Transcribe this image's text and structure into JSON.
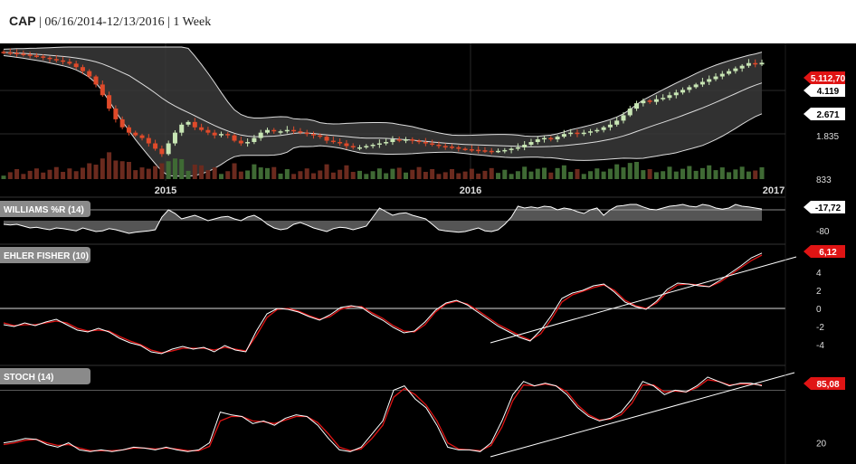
{
  "header": {
    "symbol": "CAP",
    "separator": "|",
    "date_range": "06/16/2014-12/13/2016",
    "interval": "1 Week"
  },
  "colors": {
    "background": "#000000",
    "up_candle": "#c8e6b4",
    "down_candle": "#e04a2a",
    "volume": "#3f6a34",
    "band_fill": "#3a3a3a",
    "signal_line": "#e01414",
    "value_badge": "#e01414",
    "label_tab": "#8a8a8a"
  },
  "chart_data": [
    {
      "type": "candlestick",
      "title": "",
      "x_ticks": [
        "2015",
        "2016",
        "2017"
      ],
      "y_ticks": [
        "4.119",
        "2.671",
        "1.835",
        "833"
      ],
      "price_badges": [
        {
          "value": "5.112,70",
          "color": "red"
        },
        {
          "value": "4.119",
          "color": "white"
        },
        {
          "value": "2.671",
          "color": "white"
        }
      ],
      "close": [
        5500,
        5480,
        5450,
        5420,
        5380,
        5350,
        5300,
        5250,
        5200,
        5150,
        5080,
        4950,
        4800,
        4600,
        4300,
        3900,
        3400,
        3000,
        2700,
        2500,
        2400,
        2300,
        2100,
        1900,
        1700,
        2100,
        2500,
        2800,
        2900,
        2700,
        2600,
        2500,
        2400,
        2450,
        2400,
        2200,
        2100,
        2150,
        2300,
        2500,
        2600,
        2550,
        2550,
        2600,
        2550,
        2500,
        2450,
        2400,
        2350,
        2200,
        2150,
        2100,
        2000,
        1950,
        1950,
        2000,
        2050,
        2100,
        2150,
        2250,
        2200,
        2250,
        2200,
        2150,
        2100,
        2050,
        2000,
        1980,
        1950,
        1900,
        1880,
        1860,
        1840,
        1820,
        1800,
        1820,
        1850,
        1900,
        1950,
        2050,
        2150,
        2250,
        2300,
        2250,
        2350,
        2450,
        2500,
        2450,
        2500,
        2550,
        2600,
        2700,
        2800,
        2950,
        3150,
        3400,
        3600,
        3700,
        3650,
        3750,
        3800,
        3900,
        4000,
        4100,
        4200,
        4300,
        4400,
        4500,
        4600,
        4700,
        4800,
        4900,
        5000,
        5100,
        5050,
        5112.7
      ],
      "bollinger": {
        "period": 20
      },
      "volume": {
        "y_range": [
          0,
          3000
        ]
      },
      "y_range": [
        833,
        5700
      ]
    },
    {
      "type": "line",
      "title": "WILLIAMS %R (14)",
      "value_badge": "-17,72",
      "y_ticks": [
        "-80"
      ],
      "y_range": [
        -100,
        0
      ],
      "values": [
        -60,
        -62,
        -60,
        -65,
        -70,
        -68,
        -72,
        -75,
        -70,
        -72,
        -75,
        -78,
        -70,
        -75,
        -80,
        -78,
        -72,
        -75,
        -80,
        -85,
        -82,
        -80,
        -78,
        -75,
        -40,
        -20,
        -30,
        -45,
        -40,
        -35,
        -42,
        -50,
        -45,
        -40,
        -38,
        -45,
        -50,
        -40,
        -35,
        -45,
        -60,
        -70,
        -75,
        -72,
        -60,
        -55,
        -62,
        -70,
        -75,
        -80,
        -72,
        -68,
        -70,
        -75,
        -70,
        -65,
        -40,
        -15,
        -25,
        -35,
        -30,
        -28,
        -35,
        -40,
        -45,
        -60,
        -75,
        -78,
        -80,
        -82,
        -80,
        -75,
        -70,
        -78,
        -80,
        -75,
        -60,
        -40,
        -10,
        -15,
        -12,
        -15,
        -10,
        -12,
        -20,
        -15,
        -18,
        -25,
        -30,
        -20,
        -15,
        -35,
        -20,
        -10,
        -8,
        -5,
        -5,
        -12,
        -18,
        -20,
        -15,
        -10,
        -8,
        -5,
        -10,
        -12,
        -5,
        -8,
        -15,
        -18,
        -15,
        -5,
        -10,
        -12,
        -15,
        -17.72
      ]
    },
    {
      "type": "line",
      "title": "EHLER FISHER (10)",
      "value_badge": "6,12",
      "y_ticks": [
        "4",
        "2",
        "0",
        "-2",
        "-4"
      ],
      "y_range": [
        -5.5,
        6.5
      ],
      "series": [
        {
          "values": [
            -1.8,
            -2.0,
            -1.6,
            -1.9,
            -1.5,
            -1.2,
            -1.8,
            -2.4,
            -2.6,
            -2.2,
            -2.6,
            -3.3,
            -3.8,
            -4.1,
            -4.8,
            -5.0,
            -4.5,
            -4.2,
            -4.5,
            -4.3,
            -4.8,
            -4.1,
            -4.6,
            -4.8,
            -2.5,
            -0.6,
            0.0,
            -0.1,
            -0.4,
            -0.9,
            -1.3,
            -0.7,
            0.1,
            0.3,
            0.1,
            -0.7,
            -1.3,
            -2.1,
            -2.7,
            -2.5,
            -1.5,
            -0.2,
            0.6,
            0.9,
            0.4,
            -0.4,
            -1.2,
            -2.0,
            -2.6,
            -3.2,
            -3.6,
            -2.4,
            -0.8,
            1.1,
            1.7,
            2.0,
            2.5,
            2.7,
            1.8,
            0.7,
            0.2,
            -0.1,
            0.8,
            2.1,
            2.8,
            2.7,
            2.5,
            2.4,
            3.1,
            3.9,
            4.7,
            5.6,
            6.12
          ]
        },
        {
          "values": [
            -1.6,
            -1.9,
            -1.8,
            -1.8,
            -1.6,
            -1.4,
            -1.6,
            -2.2,
            -2.5,
            -2.4,
            -2.5,
            -3.1,
            -3.6,
            -4.0,
            -4.6,
            -4.9,
            -4.7,
            -4.4,
            -4.4,
            -4.4,
            -4.6,
            -4.3,
            -4.5,
            -4.7,
            -3.0,
            -1.0,
            -0.1,
            0.0,
            -0.3,
            -0.8,
            -1.2,
            -0.9,
            -0.1,
            0.2,
            0.2,
            -0.5,
            -1.1,
            -1.9,
            -2.5,
            -2.6,
            -1.8,
            -0.4,
            0.5,
            0.8,
            0.5,
            -0.2,
            -1.0,
            -1.8,
            -2.4,
            -3.0,
            -3.5,
            -2.8,
            -1.2,
            0.7,
            1.5,
            1.9,
            2.3,
            2.6,
            2.0,
            0.9,
            0.3,
            0.0,
            0.6,
            1.8,
            2.6,
            2.7,
            2.6,
            2.4,
            2.9,
            3.7,
            4.5,
            5.3,
            5.9
          ]
        }
      ]
    },
    {
      "type": "line",
      "title": "STOCH (14)",
      "value_badge": "85,08",
      "y_ticks": [
        "20"
      ],
      "y_range": [
        0,
        100
      ],
      "series": [
        {
          "values": [
            20,
            22,
            25,
            24,
            18,
            15,
            20,
            12,
            10,
            12,
            10,
            12,
            15,
            14,
            12,
            15,
            12,
            10,
            12,
            20,
            55,
            52,
            50,
            42,
            45,
            40,
            48,
            52,
            50,
            40,
            25,
            12,
            10,
            15,
            30,
            45,
            80,
            85,
            70,
            60,
            40,
            15,
            12,
            12,
            10,
            20,
            45,
            75,
            90,
            85,
            88,
            85,
            75,
            60,
            50,
            45,
            48,
            55,
            70,
            90,
            85,
            75,
            80,
            78,
            85,
            95,
            90,
            85,
            88,
            88,
            85.08
          ]
        },
        {
          "values": [
            18,
            20,
            23,
            24,
            20,
            17,
            18,
            14,
            11,
            11,
            11,
            12,
            14,
            14,
            13,
            14,
            13,
            11,
            11,
            16,
            45,
            50,
            50,
            45,
            44,
            42,
            46,
            50,
            50,
            43,
            30,
            15,
            11,
            13,
            25,
            40,
            72,
            82,
            75,
            63,
            45,
            20,
            13,
            12,
            11,
            17,
            38,
            68,
            86,
            85,
            87,
            85,
            78,
            63,
            52,
            46,
            47,
            52,
            65,
            86,
            86,
            78,
            79,
            78,
            83,
            92,
            90,
            86,
            87,
            87,
            86
          ]
        }
      ]
    }
  ]
}
